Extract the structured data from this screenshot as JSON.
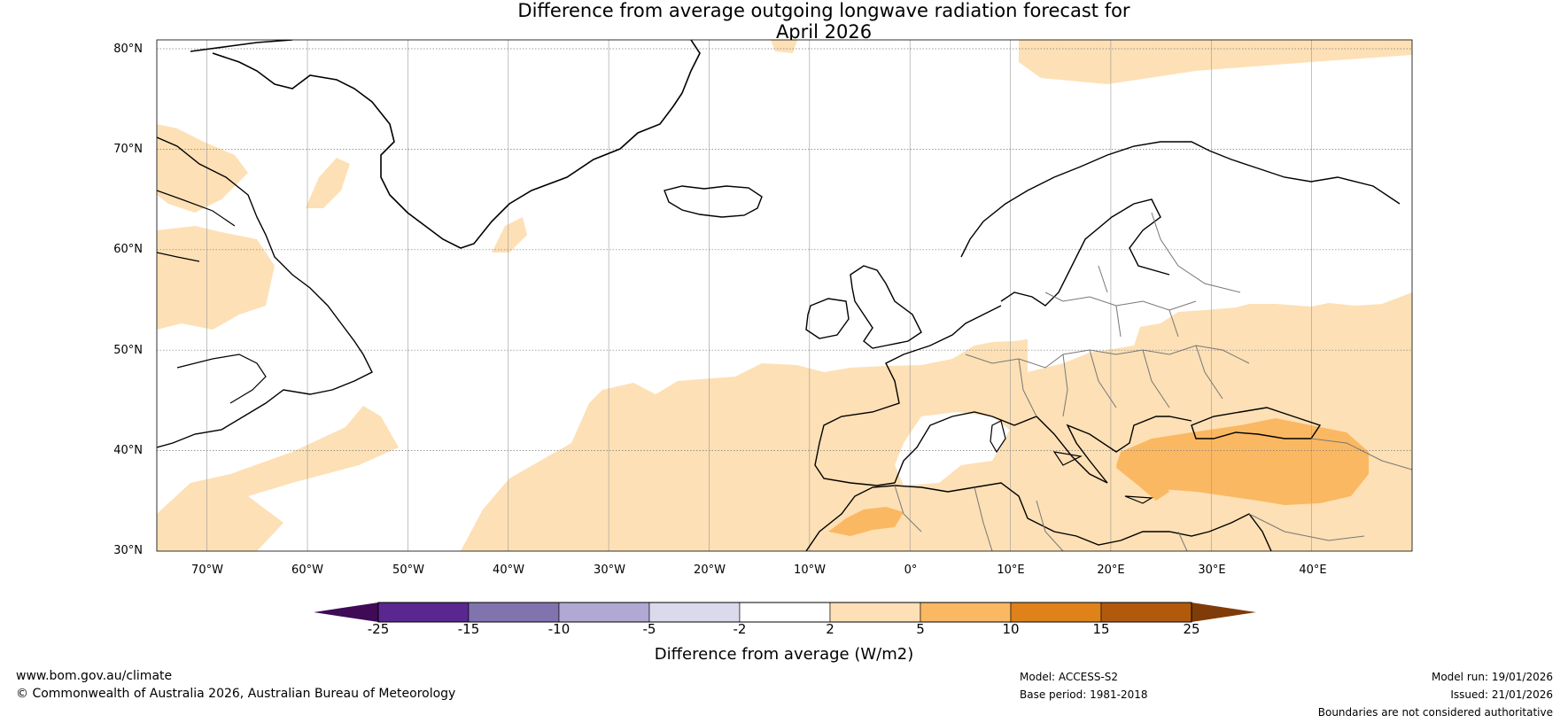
{
  "title": {
    "line1": "Difference from average outgoing longwave radiation forecast for",
    "line2": "April 2026"
  },
  "axes": {
    "lat_labels": [
      "80°N",
      "70°N",
      "60°N",
      "50°N",
      "40°N",
      "30°N"
    ],
    "lon_labels": [
      "70°W",
      "60°W",
      "50°W",
      "40°W",
      "30°W",
      "20°W",
      "10°W",
      "0°",
      "10°E",
      "20°E",
      "30°E",
      "40°E"
    ],
    "lat_range": [
      30,
      80
    ],
    "lon_range": [
      -75,
      50
    ]
  },
  "colorbar": {
    "title": "Difference from average (W/m2)",
    "tick_labels": [
      "-25",
      "-15",
      "-10",
      "-5",
      "-2",
      "2",
      "5",
      "10",
      "15",
      "25"
    ],
    "colors": [
      "#3f0a56",
      "#5a2790",
      "#8073ae",
      "#b1a8d3",
      "#dadaec",
      "#ffffff",
      "#fde0b5",
      "#fbb862",
      "#e0821a",
      "#b25a0c",
      "#7f3c09"
    ]
  },
  "footer": {
    "website": "www.bom.gov.au/climate",
    "copyright": "© Commonwealth of Australia 2026, Australian Bureau of Meteorology",
    "model": "Model: ACCESS-S2",
    "base_period": "Base period: 1981-2018",
    "model_run": "Model run: 19/01/2026",
    "issued": "Issued: 21/01/2026",
    "disclaimer": "Boundaries are not considered authoritative"
  },
  "style": {
    "anomaly_light_orange": "#fde0b5",
    "anomaly_mid_orange": "#fbb862",
    "coastline": "#000000",
    "border": "#777777"
  }
}
